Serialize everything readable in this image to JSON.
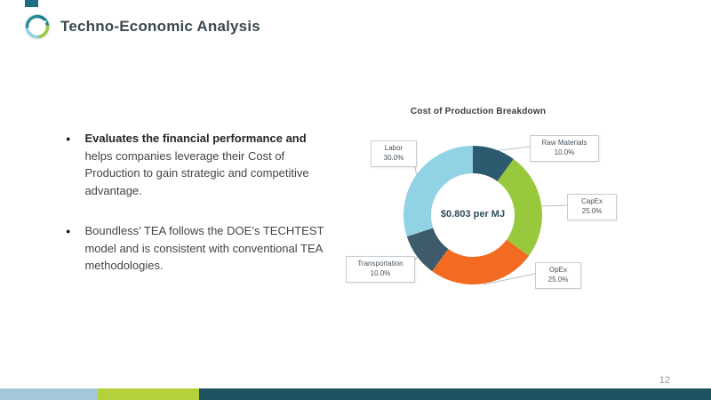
{
  "slide": {
    "title": "Techno-Economic Analysis",
    "page_number": "12",
    "bullets": [
      {
        "bold": "Evaluates the financial performance and",
        "rest": "helps companies leverage their Cost of Production to gain strategic and competitive advantage."
      },
      {
        "bold": "",
        "rest": "Boundless’ TEA follows the DOE’s TECHTEST model and is consistent with conventional TEA methodologies."
      }
    ]
  },
  "chart_data": {
    "type": "pie",
    "subtype": "donut",
    "title": "Cost of Production Breakdown",
    "center_label": "$0.803 per MJ",
    "categories": [
      "Raw Materials",
      "CapEx",
      "OpEx",
      "Transportation",
      "Labor"
    ],
    "values": [
      10.0,
      25.0,
      25.0,
      10.0,
      30.0
    ],
    "colors": [
      "#2c5a6e",
      "#98c93c",
      "#f26b21",
      "#3e5b6b",
      "#92d2e5"
    ],
    "labels": [
      {
        "name": "Raw Materials",
        "pct": "10.0%"
      },
      {
        "name": "CapEx",
        "pct": "25.0%"
      },
      {
        "name": "OpEx",
        "pct": "25.0%"
      },
      {
        "name": "Transportation",
        "pct": "10.0%"
      },
      {
        "name": "Labor",
        "pct": "30.0%"
      }
    ],
    "legend_position": "callouts",
    "start_angle_deg": 0,
    "direction": "clockwise"
  },
  "footer": {
    "colors": [
      "#a3c8d8",
      "#b4d03b",
      "#1e5362"
    ]
  },
  "accent_color": "#1f6e80"
}
